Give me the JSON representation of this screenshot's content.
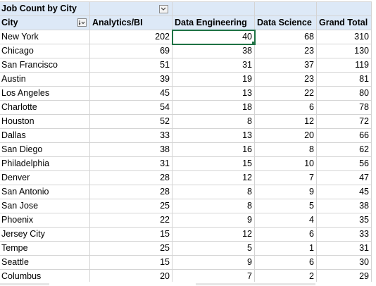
{
  "pivot": {
    "title": "Job Count by City",
    "row_header": "City",
    "columns": [
      "Analytics/BI",
      "Data Engineering",
      "Data Science",
      "Grand Total"
    ],
    "rows": [
      {
        "city": "New York",
        "values": [
          202,
          40,
          68,
          310
        ]
      },
      {
        "city": "Chicago",
        "values": [
          69,
          38,
          23,
          130
        ]
      },
      {
        "city": "San Francisco",
        "values": [
          51,
          31,
          37,
          119
        ]
      },
      {
        "city": "Austin",
        "values": [
          39,
          19,
          23,
          81
        ]
      },
      {
        "city": "Los Angeles",
        "values": [
          45,
          13,
          22,
          80
        ]
      },
      {
        "city": "Charlotte",
        "values": [
          54,
          18,
          6,
          78
        ]
      },
      {
        "city": "Houston",
        "values": [
          52,
          8,
          12,
          72
        ]
      },
      {
        "city": "Dallas",
        "values": [
          33,
          13,
          20,
          66
        ]
      },
      {
        "city": "San Diego",
        "values": [
          38,
          16,
          8,
          62
        ]
      },
      {
        "city": "Philadelphia",
        "values": [
          31,
          15,
          10,
          56
        ]
      },
      {
        "city": "Denver",
        "values": [
          28,
          12,
          7,
          47
        ]
      },
      {
        "city": "San Antonio",
        "values": [
          28,
          8,
          9,
          45
        ]
      },
      {
        "city": "San Jose",
        "values": [
          25,
          8,
          5,
          38
        ]
      },
      {
        "city": "Phoenix",
        "values": [
          22,
          9,
          4,
          35
        ]
      },
      {
        "city": "Jersey City",
        "values": [
          15,
          12,
          6,
          33
        ]
      },
      {
        "city": "Tempe",
        "values": [
          25,
          5,
          1,
          31
        ]
      },
      {
        "city": "Seattle",
        "values": [
          15,
          9,
          6,
          30
        ]
      },
      {
        "city": "Columbus",
        "values": [
          20,
          7,
          2,
          29
        ]
      }
    ]
  },
  "colors": {
    "header_bg": "#dde9f7",
    "selection": "#1f7244",
    "gridline": "#d4d4d4"
  }
}
